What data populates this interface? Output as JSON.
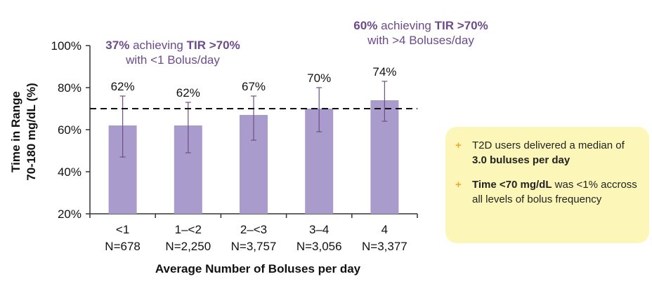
{
  "chart_data": {
    "type": "bar",
    "ylabel_line1": "Time in Range",
    "ylabel_line2": "70-180 mg/dL (%)",
    "xlabel": "Average Number of Boluses per day",
    "yticks": [
      "100%",
      "80%",
      "60%",
      "40%",
      "20%"
    ],
    "ylim": [
      20,
      100
    ],
    "categories": [
      "<1",
      "1–<2",
      "2–<3",
      "3–4",
      "4"
    ],
    "category_counts": [
      "N=678",
      "N=2,250",
      "N=3,757",
      "N=3,056",
      "N=3,377"
    ],
    "values": [
      62,
      62,
      67,
      70,
      74
    ],
    "value_labels": [
      "62%",
      "62%",
      "67%",
      "70%",
      "74%"
    ],
    "error_low": [
      47,
      49,
      55,
      59,
      64
    ],
    "error_high": [
      76,
      73,
      76,
      80,
      83
    ],
    "reference_line": 70,
    "bar_color": "#a99ccc",
    "errorbar_color": "#6d4f86"
  },
  "callouts": {
    "left": {
      "pct": "37%",
      "text_mid": "achieving",
      "tir": "TIR >70%",
      "line2": "with <1 Bolus/day"
    },
    "right": {
      "pct": "60%",
      "text_mid": "achieving",
      "tir": "TIR >70%",
      "line2": "with >4 Boluses/day"
    }
  },
  "info_box": {
    "bullet": "+",
    "item1_pre": "T2D users delivered a median of ",
    "item1_bold": "3.0 buluses per day",
    "item2_bold": "Time <70 mg/dL",
    "item2_post": " was <1% accross all levels of bolus frequency"
  },
  "colors": {
    "callout_text": "#6b4b8c",
    "info_bg": "#fcf7b8",
    "bullet": "#f0a830"
  }
}
